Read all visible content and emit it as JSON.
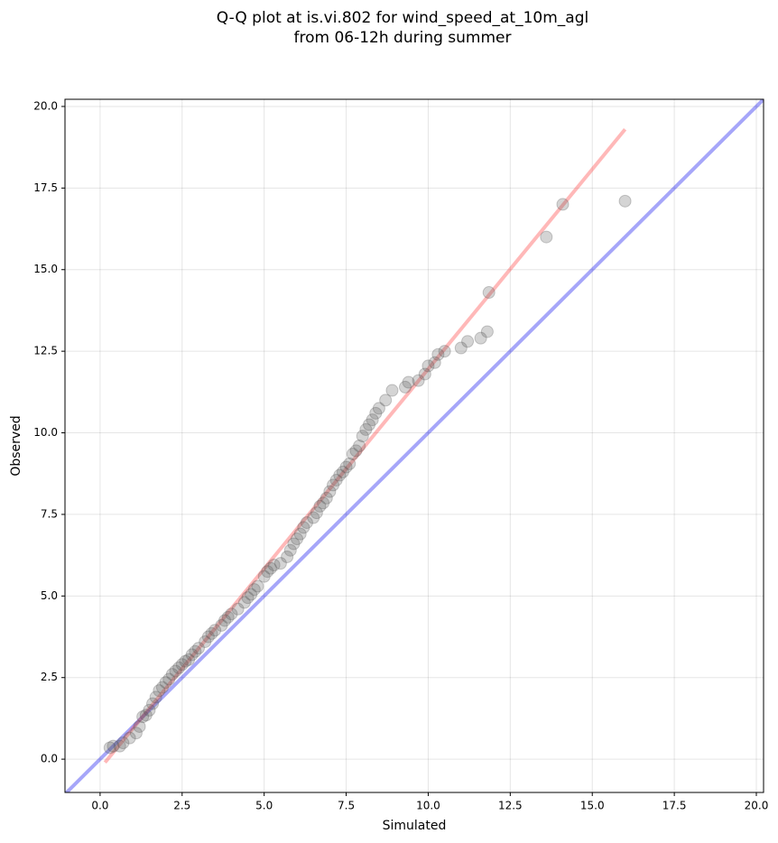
{
  "chart_data": {
    "type": "scatter",
    "title": [
      "Q-Q plot at is.vi.802 for wind_speed_at_10m_agl",
      "from 06-12h during summer"
    ],
    "xlabel": "Simulated",
    "ylabel": "Observed",
    "xlim": [
      -1.07,
      20.22
    ],
    "ylim": [
      -1.02,
      20.22
    ],
    "xticks": [
      {
        "value": 0,
        "label": "0.0"
      },
      2.5,
      {
        "value": 5,
        "label": "5.0"
      },
      7.5,
      {
        "value": 10,
        "label": "10.0"
      },
      12.5,
      {
        "value": 15,
        "label": "15.0"
      },
      17.5,
      {
        "value": 20,
        "label": "20.0"
      }
    ],
    "yticks": [
      {
        "value": 0,
        "label": "0.0"
      },
      2.5,
      {
        "value": 5,
        "label": "5.0"
      },
      7.5,
      {
        "value": 10,
        "label": "10.0"
      },
      12.5,
      {
        "value": 15,
        "label": "15.0"
      },
      17.5,
      {
        "value": 20,
        "label": "20.0"
      }
    ],
    "grid": true,
    "points": {
      "color": "#555555",
      "x": [
        0.3,
        0.4,
        0.6,
        0.7,
        0.9,
        1.1,
        1.2,
        1.3,
        1.4,
        1.5,
        1.6,
        1.7,
        1.8,
        1.9,
        2.0,
        2.1,
        2.2,
        2.3,
        2.4,
        2.5,
        2.6,
        2.7,
        2.8,
        2.9,
        3.0,
        3.2,
        3.3,
        3.4,
        3.5,
        3.7,
        3.8,
        3.9,
        4.0,
        4.2,
        4.4,
        4.5,
        4.6,
        4.7,
        4.8,
        5.0,
        5.1,
        5.2,
        5.3,
        5.5,
        5.7,
        5.8,
        5.9,
        6.0,
        6.1,
        6.2,
        6.3,
        6.5,
        6.6,
        6.7,
        6.8,
        6.9,
        7.0,
        7.1,
        7.2,
        7.3,
        7.4,
        7.5,
        7.6,
        7.7,
        7.8,
        7.9,
        8.0,
        8.1,
        8.2,
        8.3,
        8.4,
        8.5,
        8.7,
        8.9,
        9.3,
        9.4,
        9.7,
        9.9,
        10.0,
        10.2,
        10.3,
        10.5,
        11.0,
        11.2,
        11.6,
        11.8,
        11.85,
        13.6,
        14.1,
        16.0
      ],
      "values": [
        0.35,
        0.4,
        0.4,
        0.5,
        0.65,
        0.8,
        1.0,
        1.3,
        1.35,
        1.5,
        1.7,
        1.9,
        2.1,
        2.2,
        2.35,
        2.45,
        2.6,
        2.7,
        2.8,
        2.9,
        3.0,
        3.05,
        3.2,
        3.3,
        3.4,
        3.6,
        3.75,
        3.85,
        3.95,
        4.1,
        4.25,
        4.35,
        4.45,
        4.6,
        4.8,
        4.95,
        5.05,
        5.2,
        5.3,
        5.6,
        5.75,
        5.85,
        5.95,
        6.0,
        6.2,
        6.4,
        6.6,
        6.75,
        6.9,
        7.1,
        7.25,
        7.4,
        7.55,
        7.75,
        7.85,
        8.0,
        8.2,
        8.4,
        8.55,
        8.7,
        8.8,
        8.95,
        9.05,
        9.35,
        9.45,
        9.6,
        9.9,
        10.1,
        10.25,
        10.4,
        10.6,
        10.75,
        11.0,
        11.3,
        11.4,
        11.55,
        11.6,
        11.8,
        12.05,
        12.15,
        12.4,
        12.5,
        12.6,
        12.8,
        12.9,
        13.1,
        14.3,
        16.0,
        17.0,
        17.1
      ]
    },
    "series": [
      {
        "color": "#0000ee",
        "x": [
          -1.07,
          20.22
        ],
        "values": [
          -1.07,
          20.22
        ]
      },
      {
        "color": "#ff3333",
        "x": [
          0.15,
          16.0
        ],
        "values": [
          -0.1,
          19.3
        ]
      }
    ]
  }
}
